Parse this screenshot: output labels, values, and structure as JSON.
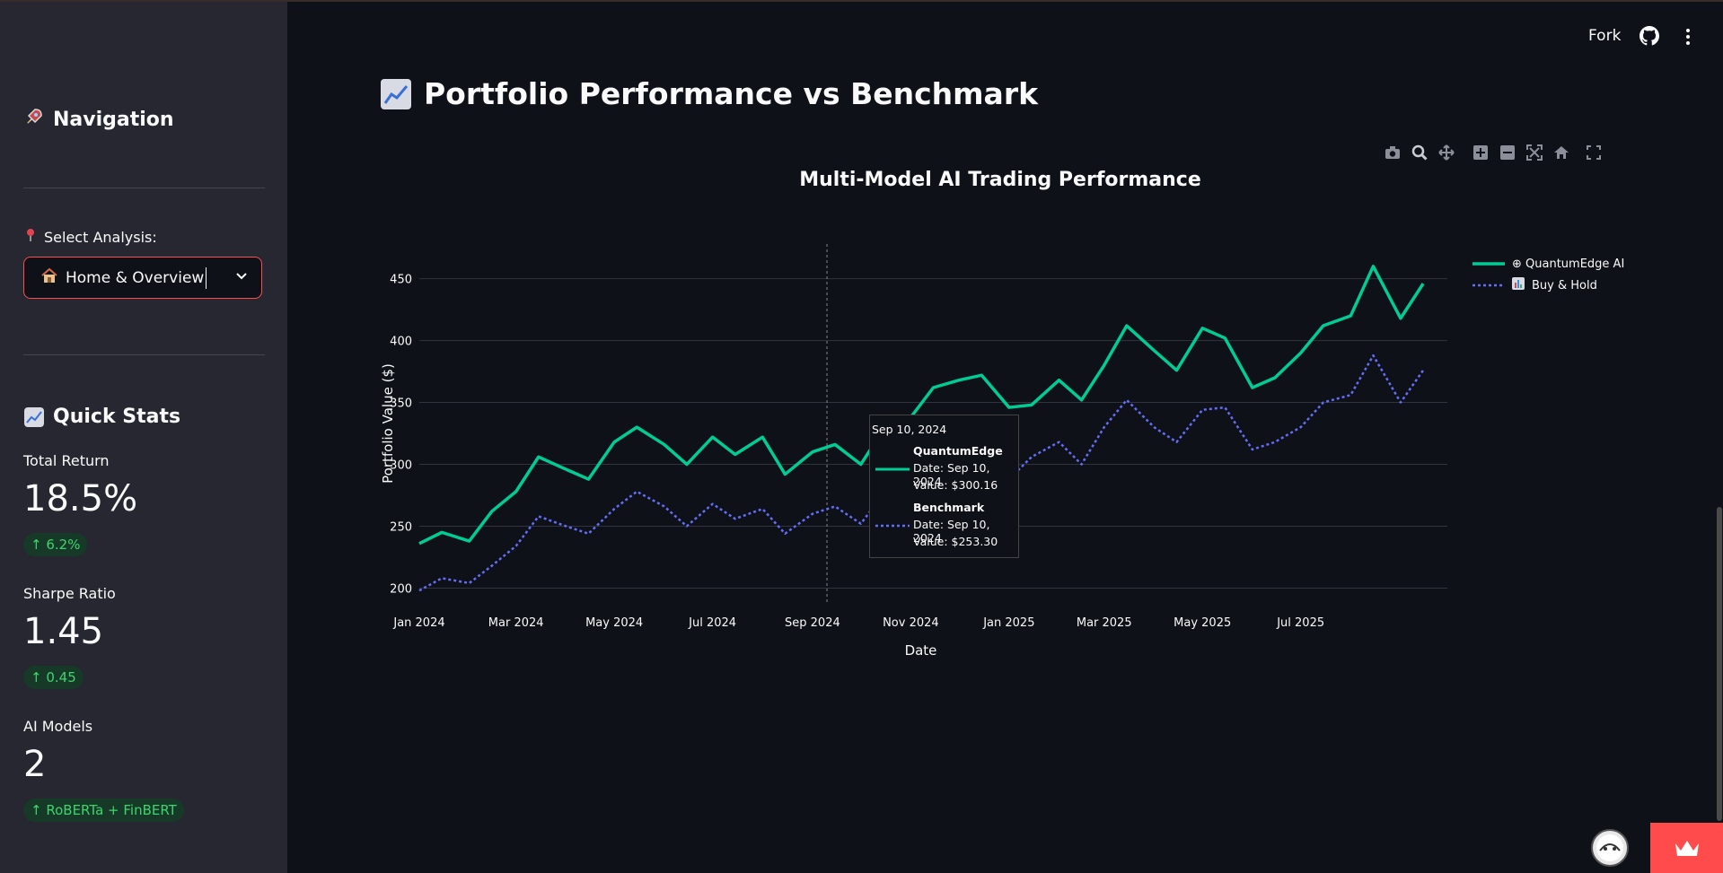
{
  "header": {
    "fork_label": "Fork",
    "github_icon": "github-icon",
    "menu_icon": "more-vertical-icon"
  },
  "sidebar": {
    "nav_title": "Navigation",
    "nav_icon": "rocket-icon",
    "select_label": "Select Analysis:",
    "select_label_icon": "pin-icon",
    "select_value": "Home & Overview",
    "select_value_icon": "house-icon",
    "quick_stats_title": "Quick Stats",
    "quick_stats_icon": "chart-up-icon",
    "metrics": [
      {
        "label": "Total Return",
        "value": "18.5%",
        "delta": "6.2%"
      },
      {
        "label": "Sharpe Ratio",
        "value": "1.45",
        "delta": "0.45"
      },
      {
        "label": "AI Models",
        "value": "2",
        "delta": "RoBERTa + FinBERT"
      }
    ]
  },
  "main": {
    "title": "Portfolio Performance vs Benchmark",
    "title_icon": "chart-up-icon"
  },
  "toolbar": {
    "icons": [
      "camera-icon",
      "zoom-icon",
      "pan-icon",
      "zoom-in-icon",
      "zoom-out-icon",
      "autoscale-icon",
      "reset-axes-icon",
      "fullscreen-icon"
    ]
  },
  "tooltip": {
    "date": "Sep 10, 2024",
    "series": [
      {
        "name": "QuantumEdge",
        "date_line": "Date: Sep 10, 2024",
        "value_line": "Value: $300.16"
      },
      {
        "name": "Benchmark",
        "date_line": "Date: Sep 10, 2024",
        "value_line": "Value: $253.30"
      }
    ]
  },
  "colors": {
    "accent": "#ff4b4b",
    "series_1": "#00cc96",
    "series_2": "#636efa",
    "delta_green": "#3dd56d"
  },
  "chart_data": {
    "type": "line",
    "title": "Multi-Model AI Trading Performance",
    "xlabel": "Date",
    "ylabel": "Portfolio Value ($)",
    "x_ticks": [
      "Jan 2024",
      "Mar 2024",
      "May 2024",
      "Jul 2024",
      "Sep 2024",
      "Nov 2024",
      "Jan 2025",
      "Mar 2025",
      "May 2025",
      "Jul 2025"
    ],
    "y_ticks": [
      200,
      250,
      300,
      350,
      400,
      450
    ],
    "ylim": [
      188,
      478
    ],
    "grid": true,
    "legend_position": "top-right",
    "x": [
      "2024-01-01",
      "2024-01-15",
      "2024-02-01",
      "2024-02-15",
      "2024-03-01",
      "2024-03-15",
      "2024-04-01",
      "2024-04-15",
      "2024-05-01",
      "2024-05-15",
      "2024-06-01",
      "2024-06-15",
      "2024-07-01",
      "2024-07-15",
      "2024-08-01",
      "2024-08-15",
      "2024-09-01",
      "2024-09-15",
      "2024-10-01",
      "2024-10-15",
      "2024-11-01",
      "2024-11-15",
      "2024-12-01",
      "2024-12-15",
      "2025-01-01",
      "2025-01-15",
      "2025-02-01",
      "2025-02-15",
      "2025-03-01",
      "2025-03-15",
      "2025-04-01",
      "2025-04-15",
      "2025-05-01",
      "2025-05-15",
      "2025-06-01",
      "2025-06-15",
      "2025-07-01",
      "2025-07-15",
      "2025-08-01",
      "2025-08-15",
      "2025-09-01",
      "2025-09-15"
    ],
    "series": [
      {
        "name": "⊕ QuantumEdge AI",
        "style": "solid",
        "values": [
          236,
          245,
          238,
          262,
          278,
          306,
          296,
          288,
          318,
          330,
          316,
          300,
          322,
          308,
          322,
          292,
          310,
          316,
          300,
          328,
          338,
          362,
          368,
          372,
          346,
          348,
          368,
          352,
          380,
          412,
          392,
          376,
          410,
          402,
          362,
          370,
          390,
          412,
          420,
          460,
          418,
          446
        ]
      },
      {
        "name": "Buy & Hold",
        "style": "dotted",
        "values": [
          198,
          208,
          204,
          218,
          234,
          258,
          250,
          244,
          264,
          278,
          266,
          250,
          268,
          256,
          264,
          244,
          260,
          266,
          252,
          276,
          290,
          306,
          298,
          292,
          288,
          306,
          318,
          300,
          330,
          352,
          330,
          318,
          344,
          346,
          312,
          318,
          330,
          350,
          356,
          388,
          350,
          376
        ]
      }
    ]
  }
}
